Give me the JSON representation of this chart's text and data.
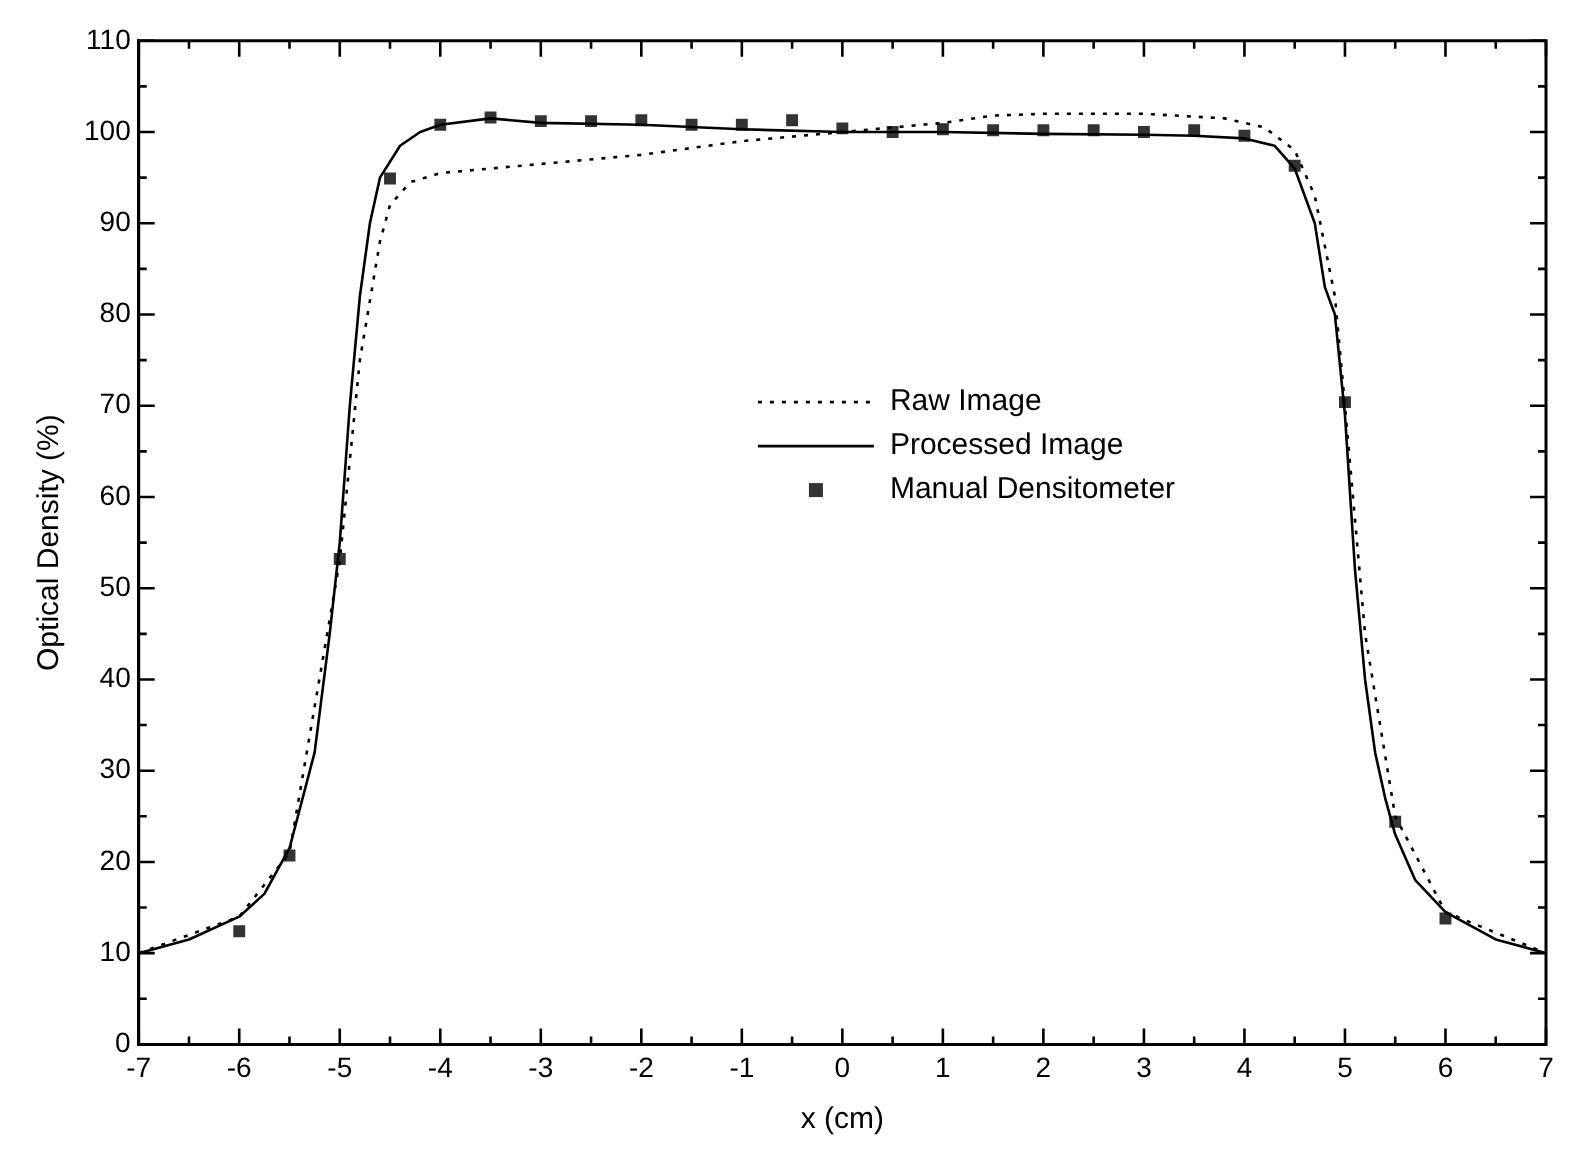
{
  "chart_data": {
    "type": "line",
    "xlabel": "x (cm)",
    "ylabel": "Optical Density (%)",
    "xlim": [
      -7,
      7
    ],
    "ylim": [
      0,
      110
    ],
    "xticks": [
      -7,
      -6,
      -5,
      -4,
      -3,
      -2,
      -1,
      0,
      1,
      2,
      3,
      4,
      5,
      6,
      7
    ],
    "yticks": [
      0,
      10,
      20,
      30,
      40,
      50,
      60,
      70,
      80,
      90,
      100,
      110
    ],
    "grid": false,
    "legend": "center",
    "series": [
      {
        "name": "Raw Image",
        "type": "line",
        "line_style": "dotted",
        "color": "#000000",
        "x": [
          -7,
          -6,
          -5.5,
          -5,
          -4.8,
          -4.6,
          -4.5,
          -4.3,
          -4,
          -3,
          -2,
          -1,
          0,
          0.5,
          1,
          1.5,
          2,
          3,
          3.8,
          4.2,
          4.5,
          4.7,
          4.9,
          5,
          5.2,
          5.5,
          6,
          7
        ],
        "values": [
          10,
          14,
          21,
          53,
          75,
          88,
          92,
          94.5,
          95.5,
          96.5,
          97.5,
          99,
          100,
          100.5,
          101,
          101.8,
          102,
          102,
          101.5,
          100.5,
          98,
          93,
          82,
          70,
          45,
          25,
          14.5,
          10
        ]
      },
      {
        "name": "Processed Image",
        "type": "line",
        "line_style": "solid",
        "color": "#000000",
        "x": [
          -7,
          -6.5,
          -6,
          -5.75,
          -5.5,
          -5.25,
          -5.1,
          -5,
          -4.9,
          -4.8,
          -4.7,
          -4.6,
          -4.4,
          -4.2,
          -4,
          -3.5,
          -3,
          -2,
          -1,
          0,
          1,
          2,
          3,
          3.5,
          4,
          4.3,
          4.5,
          4.7,
          4.8,
          4.9,
          5,
          5.1,
          5.2,
          5.3,
          5.4,
          5.5,
          5.7,
          6,
          6.5,
          7
        ],
        "values": [
          10,
          11.5,
          14,
          16.5,
          21.5,
          32,
          45,
          55,
          70,
          82,
          90,
          95,
          98.5,
          100,
          100.8,
          101.5,
          101,
          100.8,
          100.3,
          100,
          100,
          99.8,
          99.7,
          99.6,
          99.3,
          98.5,
          96,
          90,
          83,
          80,
          69,
          52,
          40,
          32,
          27,
          23,
          18,
          14.5,
          11.5,
          10
        ]
      },
      {
        "name": "Manual Densitometer",
        "type": "scatter",
        "marker": "square",
        "color": "#333333",
        "x": [
          -6,
          -5.5,
          -5,
          -4.5,
          -4,
          -3.5,
          -3,
          -2.5,
          -2,
          -1.5,
          -1,
          -0.5,
          0,
          0.5,
          1,
          1.5,
          2,
          2.5,
          3,
          3.5,
          4,
          4.5,
          5,
          5.5,
          6
        ],
        "values": [
          12.4,
          20.7,
          53.2,
          94.9,
          100.8,
          101.6,
          101.2,
          101.2,
          101.3,
          100.8,
          100.8,
          101.3,
          100.4,
          100,
          100.3,
          100.2,
          100.2,
          100.2,
          100,
          100.2,
          99.6,
          96.3,
          70.4,
          24.4,
          13.8
        ]
      }
    ]
  }
}
